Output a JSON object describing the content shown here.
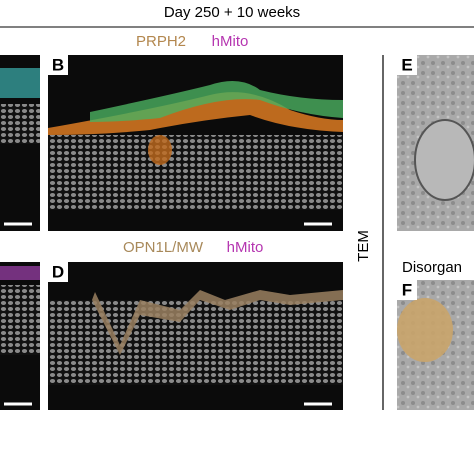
{
  "header": {
    "title": "Day 250 + 10 weeks"
  },
  "panels": [
    {
      "label": "B",
      "stains": [
        "PRPH2",
        "hMito"
      ]
    },
    {
      "label": "D",
      "stains": [
        "OPN1L/MW",
        "hMito"
      ]
    },
    {
      "label": "E"
    },
    {
      "label": "F",
      "caption": "Disorgan"
    }
  ],
  "side_label": "TEM"
}
